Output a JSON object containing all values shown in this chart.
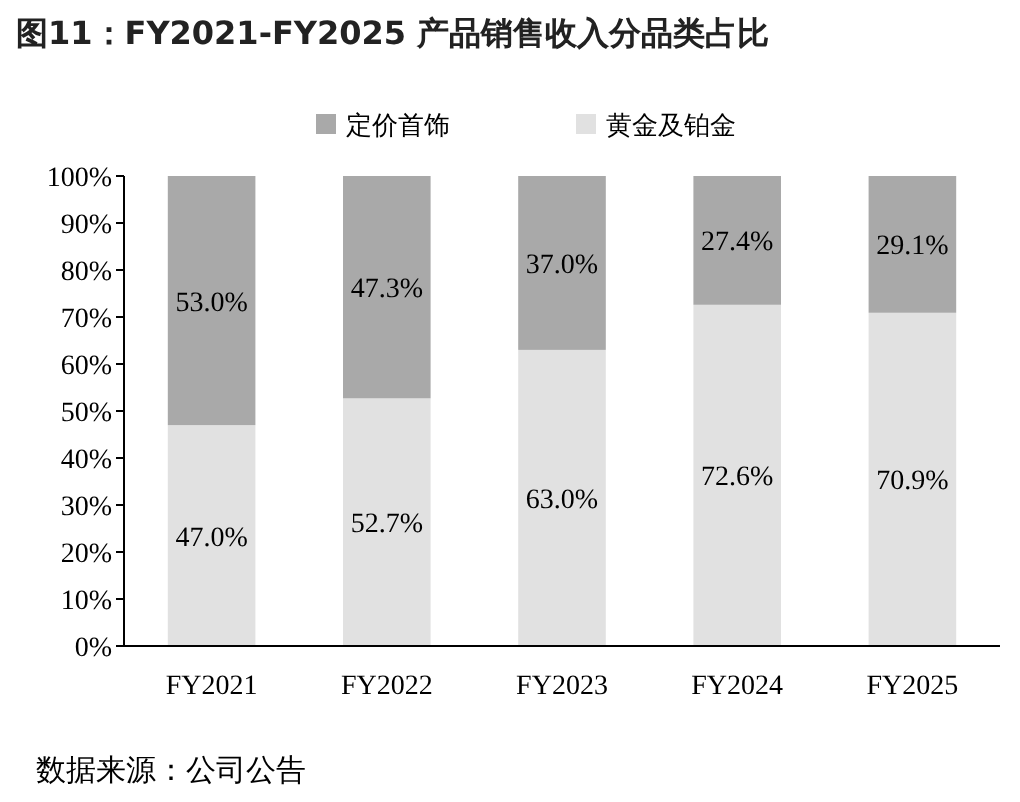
{
  "chart_data": {
    "type": "bar",
    "title": "图11：FY2021-FY2025 产品销售收入分品类占比",
    "stacked": true,
    "categories": [
      "FY2021",
      "FY2022",
      "FY2023",
      "FY2024",
      "FY2025"
    ],
    "series": [
      {
        "name": "黄金及铂金",
        "color": "#e1e1e1",
        "values": [
          47.0,
          52.7,
          63.0,
          72.6,
          70.9
        ],
        "value_labels": [
          "47.0%",
          "52.7%",
          "63.0%",
          "72.6%",
          "70.9%"
        ]
      },
      {
        "name": "定价首饰",
        "color": "#a9a9a9",
        "values": [
          53.0,
          47.3,
          37.0,
          27.4,
          29.1
        ],
        "value_labels": [
          "53.0%",
          "47.3%",
          "37.0%",
          "27.4%",
          "29.1%"
        ]
      }
    ],
    "legend": "top",
    "ylim": [
      0,
      100
    ],
    "yticks": [
      {
        "value": 0,
        "label": "0%"
      },
      {
        "value": 10,
        "label": "10%"
      },
      {
        "value": 20,
        "label": "20%"
      },
      {
        "value": 30,
        "label": "30%"
      },
      {
        "value": 40,
        "label": "40%"
      },
      {
        "value": 50,
        "label": "50%"
      },
      {
        "value": 60,
        "label": "60%"
      },
      {
        "value": 70,
        "label": "70%"
      },
      {
        "value": 80,
        "label": "80%"
      },
      {
        "value": 90,
        "label": "90%"
      },
      {
        "value": 100,
        "label": "100%"
      }
    ],
    "annotations": [
      "数据来源：公司公告"
    ]
  }
}
